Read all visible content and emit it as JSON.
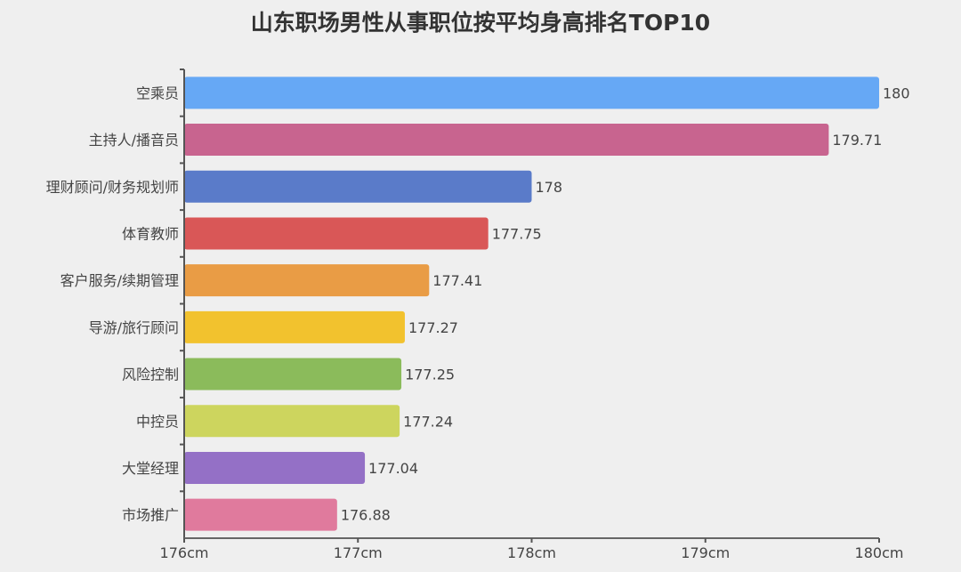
{
  "chart_data": {
    "type": "bar",
    "orientation": "horizontal",
    "title": "山东职场男性从事职位按平均身高排名TOP10",
    "categories": [
      "空乘员",
      "主持人/播音员",
      "理财顾问/财务规划师",
      "体育教师",
      "客户服务/续期管理",
      "导游/旅行顾问",
      "风险控制",
      "中控员",
      "大堂经理",
      "市场推广"
    ],
    "values": [
      180,
      179.71,
      178,
      177.75,
      177.41,
      177.27,
      177.25,
      177.24,
      177.04,
      176.88
    ],
    "value_labels": [
      "180",
      "179.71",
      "178",
      "177.75",
      "177.41",
      "177.27",
      "177.25",
      "177.24",
      "177.04",
      "176.88"
    ],
    "colors": [
      "#66a8f5",
      "#c8648f",
      "#5a7bc9",
      "#d95757",
      "#e99c45",
      "#f2c22e",
      "#8bbb5b",
      "#cdd55e",
      "#9470c6",
      "#e07a9d"
    ],
    "xlim": [
      176,
      180
    ],
    "xticks": [
      176,
      177,
      178,
      179,
      180
    ],
    "xtick_labels": [
      "176cm",
      "177cm",
      "178cm",
      "179cm",
      "180cm"
    ],
    "grid": false,
    "legend": "none",
    "xlabel": "",
    "ylabel": ""
  }
}
